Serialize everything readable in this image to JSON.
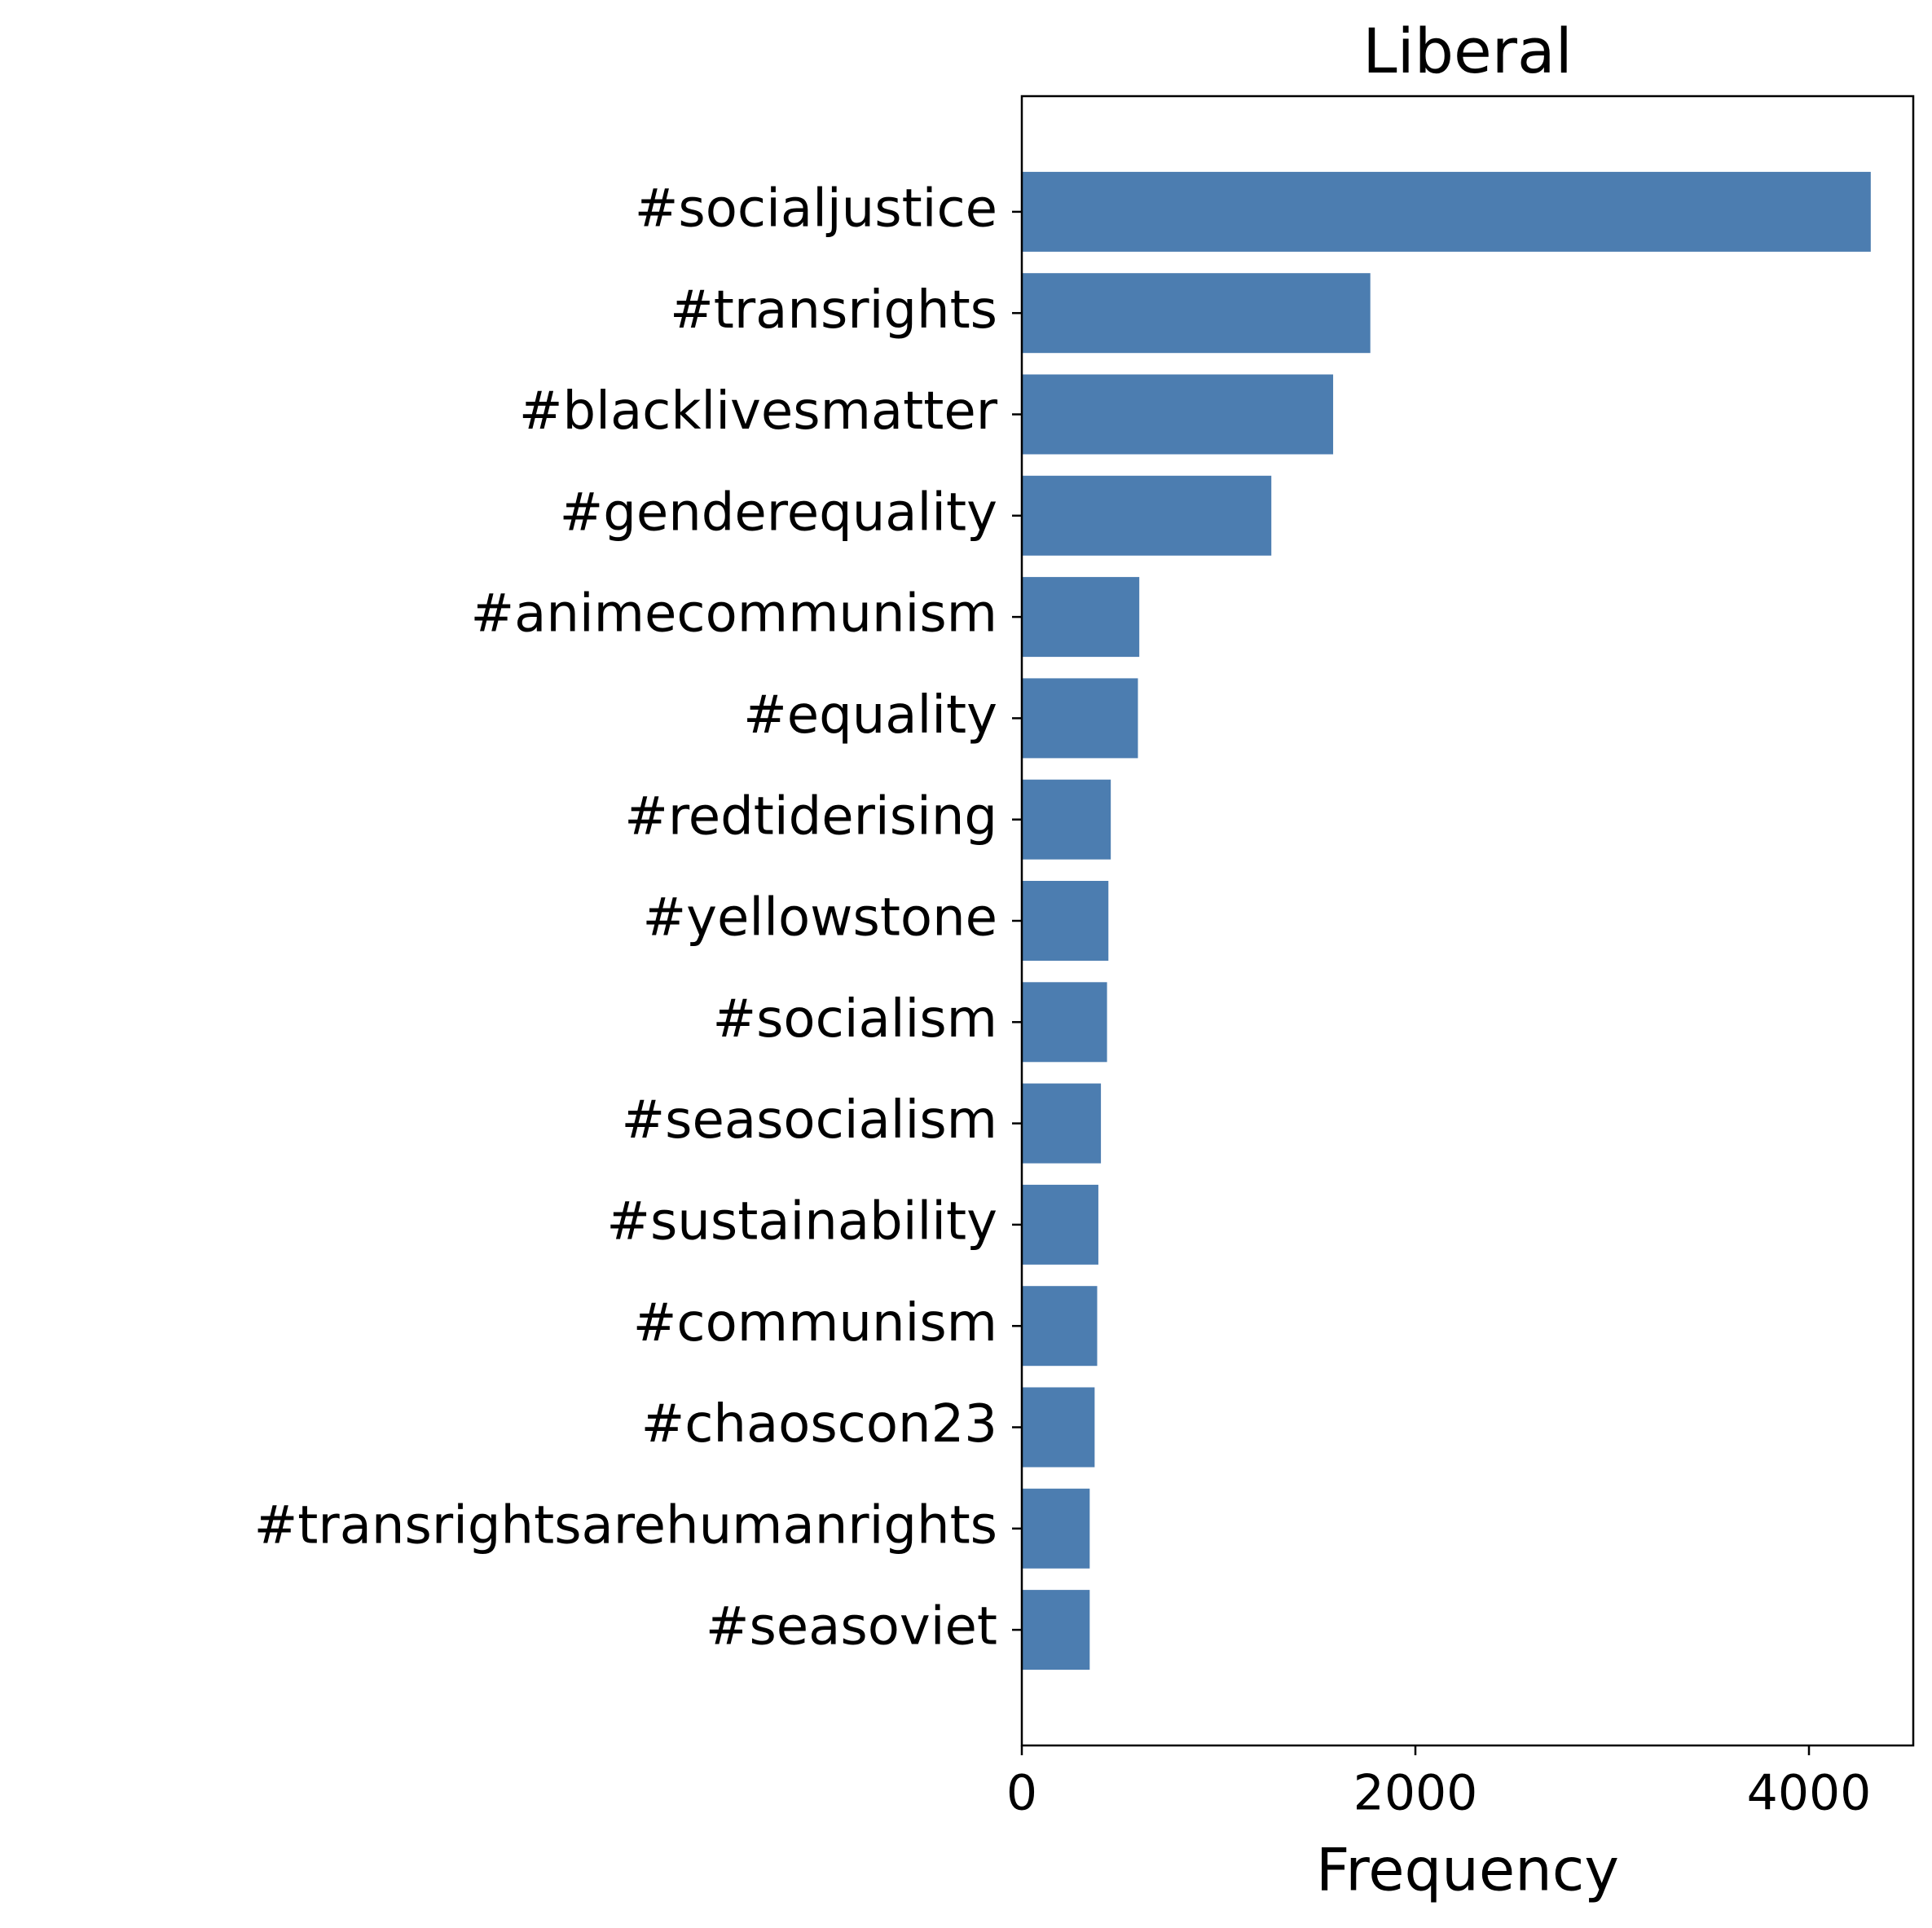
{
  "chart_data": {
    "type": "barh",
    "title": "Liberal",
    "xlabel": "Frequency",
    "categories": [
      "#socialjustice",
      "#transrights",
      "#blacklivesmatter",
      "#genderequality",
      "#animecommunism",
      "#equality",
      "#redtiderising",
      "#yellowstone",
      "#socialism",
      "#seasocialism",
      "#sustainability",
      "#communism",
      "#chaoscon23",
      "#transrightsarehumanrights",
      "#seasoviet"
    ],
    "values": [
      4314,
      1771,
      1582,
      1268,
      597,
      590,
      452,
      440,
      433,
      402,
      389,
      383,
      370,
      345,
      345
    ],
    "color": "#4c7db0",
    "xlim": [
      0,
      4530
    ],
    "xticks": [
      0,
      2000,
      4000
    ],
    "grid": false
  }
}
